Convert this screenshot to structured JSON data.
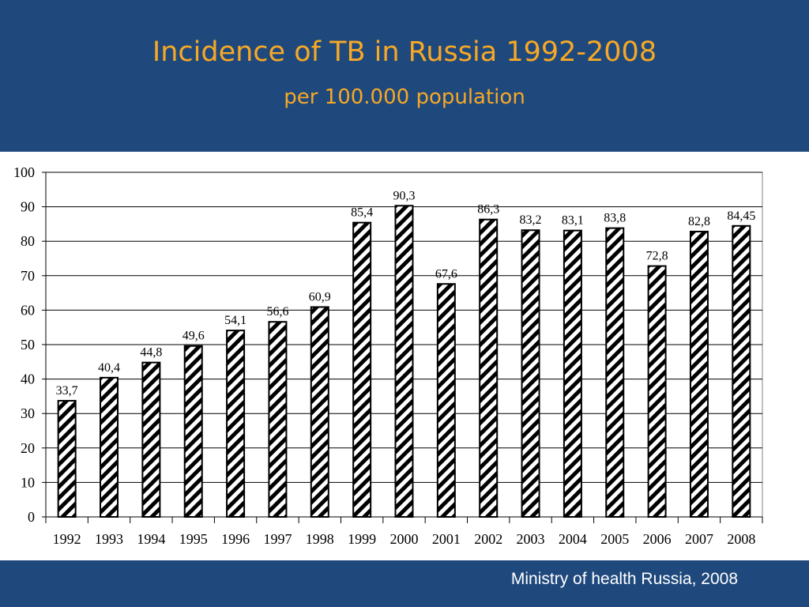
{
  "header": {
    "title": "Incidence of TB in Russia 1992-2008",
    "subtitle": "per 100.000 population"
  },
  "footer": {
    "source": "Ministry of health Russia, 2008"
  },
  "colors": {
    "header_bg": "#1f497d",
    "title": "#f7a825",
    "bar_pattern": "diagonal black hatching on white"
  },
  "chart_data": {
    "type": "bar",
    "title": "Incidence of TB in Russia 1992-2008",
    "subtitle": "per 100.000 population",
    "xlabel": "",
    "ylabel": "",
    "ylim": [
      0,
      100
    ],
    "yticks": [
      0,
      10,
      20,
      30,
      40,
      50,
      60,
      70,
      80,
      90,
      100
    ],
    "grid": true,
    "categories": [
      "1992",
      "1993",
      "1994",
      "1995",
      "1996",
      "1997",
      "1998",
      "1999",
      "2000",
      "2001",
      "2002",
      "2003",
      "2004",
      "2005",
      "2006",
      "2007",
      "2008"
    ],
    "values": [
      33.7,
      40.4,
      44.8,
      49.6,
      54.1,
      56.6,
      60.9,
      85.4,
      90.3,
      67.6,
      86.3,
      83.2,
      83.1,
      83.8,
      72.8,
      82.8,
      84.45
    ],
    "data_labels": [
      "33,7",
      "40,4",
      "44,8",
      "49,6",
      "54,1",
      "56,6",
      "60,9",
      "85,4",
      "90,3",
      "67,6",
      "86,3",
      "83,2",
      "83,1",
      "83,8",
      "72,8",
      "82,8",
      "84,45"
    ]
  }
}
